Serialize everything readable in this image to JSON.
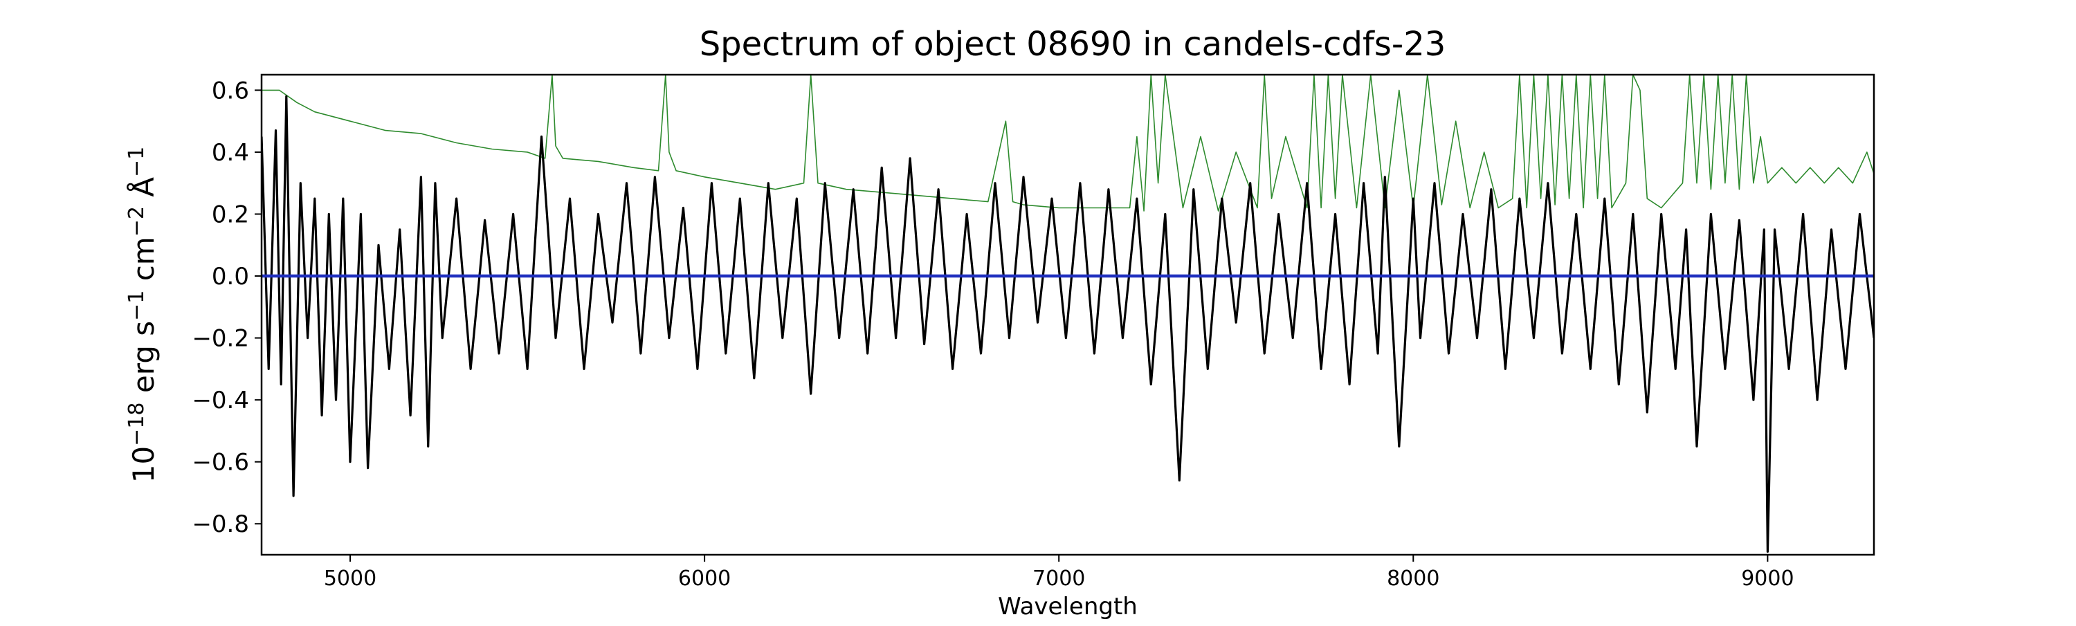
{
  "chart_data": {
    "type": "line",
    "title": "Spectrum of object 08690 in candels-cdfs-23",
    "xlabel": "Wavelength",
    "ylabel": {
      "base": "10",
      "base_exp": "−18",
      "unit1": " erg s",
      "unit1_exp": "−1",
      "unit2": " cm",
      "unit2_exp": "−2",
      "unit3": " Å",
      "unit3_exp": "−1"
    },
    "xlim": [
      4750,
      9300
    ],
    "ylim": [
      -0.9,
      0.65
    ],
    "xticks": [
      5000,
      6000,
      7000,
      8000,
      9000
    ],
    "xtick_labels": [
      "5000",
      "6000",
      "7000",
      "8000",
      "9000"
    ],
    "yticks": [
      0.6,
      0.4,
      0.2,
      0.0,
      -0.2,
      -0.4,
      -0.6,
      -0.8
    ],
    "ytick_labels": [
      "0.6",
      "0.4",
      "0.2",
      "0.0",
      "−0.2",
      "−0.4",
      "−0.6",
      "−0.8"
    ],
    "grid": false,
    "colors": {
      "flux": "#000000",
      "error": "#2e8b2e",
      "zero": "#1f2fbf"
    },
    "series": [
      {
        "role": "flux",
        "x": [
          4750,
          4770,
          4790,
          4805,
          4820,
          4840,
          4860,
          4880,
          4900,
          4920,
          4940,
          4960,
          4980,
          5000,
          5030,
          5050,
          5080,
          5110,
          5140,
          5170,
          5200,
          5220,
          5240,
          5260,
          5300,
          5340,
          5380,
          5420,
          5460,
          5500,
          5540,
          5580,
          5620,
          5660,
          5700,
          5740,
          5780,
          5820,
          5860,
          5900,
          5940,
          5980,
          6020,
          6060,
          6100,
          6140,
          6180,
          6220,
          6260,
          6300,
          6340,
          6380,
          6420,
          6460,
          6500,
          6540,
          6580,
          6620,
          6660,
          6700,
          6740,
          6780,
          6820,
          6860,
          6900,
          6940,
          6980,
          7020,
          7060,
          7100,
          7140,
          7180,
          7220,
          7260,
          7300,
          7340,
          7380,
          7420,
          7460,
          7500,
          7540,
          7580,
          7620,
          7660,
          7700,
          7740,
          7780,
          7820,
          7860,
          7900,
          7920,
          7960,
          8000,
          8020,
          8060,
          8100,
          8140,
          8180,
          8220,
          8260,
          8300,
          8340,
          8380,
          8420,
          8460,
          8500,
          8540,
          8580,
          8620,
          8660,
          8700,
          8740,
          8770,
          8800,
          8840,
          8880,
          8920,
          8960,
          8990,
          9000,
          9020,
          9060,
          9100,
          9140,
          9180,
          9220,
          9260,
          9300
        ],
        "y": [
          0.45,
          -0.3,
          0.47,
          -0.35,
          0.58,
          -0.71,
          0.3,
          -0.2,
          0.25,
          -0.45,
          0.2,
          -0.4,
          0.25,
          -0.6,
          0.2,
          -0.62,
          0.1,
          -0.3,
          0.15,
          -0.45,
          0.32,
          -0.55,
          0.3,
          -0.2,
          0.25,
          -0.3,
          0.18,
          -0.25,
          0.2,
          -0.3,
          0.45,
          -0.2,
          0.25,
          -0.3,
          0.2,
          -0.15,
          0.3,
          -0.25,
          0.32,
          -0.2,
          0.22,
          -0.3,
          0.3,
          -0.25,
          0.25,
          -0.33,
          0.3,
          -0.2,
          0.25,
          -0.38,
          0.3,
          -0.2,
          0.28,
          -0.25,
          0.35,
          -0.2,
          0.38,
          -0.22,
          0.28,
          -0.3,
          0.2,
          -0.25,
          0.3,
          -0.2,
          0.32,
          -0.15,
          0.25,
          -0.2,
          0.3,
          -0.25,
          0.28,
          -0.2,
          0.25,
          -0.35,
          0.2,
          -0.66,
          0.28,
          -0.3,
          0.25,
          -0.15,
          0.3,
          -0.25,
          0.2,
          -0.2,
          0.3,
          -0.3,
          0.2,
          -0.35,
          0.3,
          -0.25,
          0.32,
          -0.55,
          0.25,
          -0.2,
          0.3,
          -0.25,
          0.2,
          -0.2,
          0.28,
          -0.3,
          0.25,
          -0.2,
          0.3,
          -0.25,
          0.2,
          -0.3,
          0.25,
          -0.35,
          0.2,
          -0.44,
          0.2,
          -0.3,
          0.15,
          -0.55,
          0.2,
          -0.3,
          0.18,
          -0.4,
          0.15,
          -0.89,
          0.15,
          -0.3,
          0.2,
          -0.4,
          0.15,
          -0.3,
          0.2,
          -0.2
        ]
      },
      {
        "role": "error",
        "x": [
          4750,
          4800,
          4850,
          4900,
          5000,
          5100,
          5200,
          5300,
          5400,
          5500,
          5550,
          5570,
          5580,
          5600,
          5700,
          5800,
          5870,
          5890,
          5900,
          5920,
          6000,
          6100,
          6200,
          6280,
          6300,
          6320,
          6400,
          6500,
          6600,
          6700,
          6800,
          6850,
          6870,
          6900,
          7000,
          7100,
          7200,
          7220,
          7240,
          7260,
          7280,
          7300,
          7350,
          7400,
          7450,
          7500,
          7560,
          7580,
          7600,
          7640,
          7700,
          7720,
          7740,
          7760,
          7780,
          7800,
          7840,
          7880,
          7920,
          7960,
          8000,
          8040,
          8080,
          8120,
          8160,
          8200,
          8240,
          8280,
          8300,
          8320,
          8340,
          8360,
          8380,
          8400,
          8420,
          8440,
          8460,
          8480,
          8500,
          8520,
          8540,
          8560,
          8600,
          8620,
          8640,
          8660,
          8700,
          8760,
          8780,
          8800,
          8820,
          8840,
          8860,
          8880,
          8900,
          8920,
          8940,
          8960,
          8980,
          9000,
          9040,
          9080,
          9120,
          9160,
          9200,
          9240,
          9280,
          9300
        ],
        "y": [
          0.6,
          0.6,
          0.56,
          0.53,
          0.5,
          0.47,
          0.46,
          0.43,
          0.41,
          0.4,
          0.38,
          0.65,
          0.42,
          0.38,
          0.37,
          0.35,
          0.34,
          0.65,
          0.4,
          0.34,
          0.32,
          0.3,
          0.28,
          0.3,
          0.65,
          0.3,
          0.28,
          0.27,
          0.26,
          0.25,
          0.24,
          0.5,
          0.24,
          0.23,
          0.22,
          0.22,
          0.22,
          0.45,
          0.21,
          0.65,
          0.3,
          0.65,
          0.22,
          0.45,
          0.21,
          0.4,
          0.22,
          0.65,
          0.25,
          0.45,
          0.22,
          0.65,
          0.22,
          0.65,
          0.25,
          0.65,
          0.22,
          0.65,
          0.22,
          0.6,
          0.22,
          0.65,
          0.23,
          0.5,
          0.22,
          0.4,
          0.22,
          0.25,
          0.65,
          0.22,
          0.65,
          0.25,
          0.65,
          0.23,
          0.65,
          0.25,
          0.65,
          0.22,
          0.65,
          0.25,
          0.65,
          0.22,
          0.3,
          0.65,
          0.6,
          0.25,
          0.22,
          0.3,
          0.65,
          0.3,
          0.65,
          0.28,
          0.65,
          0.3,
          0.65,
          0.28,
          0.65,
          0.3,
          0.45,
          0.3,
          0.35,
          0.3,
          0.35,
          0.3,
          0.35,
          0.3,
          0.4,
          0.33
        ]
      },
      {
        "role": "zero",
        "x": [
          4750,
          9300
        ],
        "y": [
          0.0,
          0.0
        ]
      }
    ]
  }
}
